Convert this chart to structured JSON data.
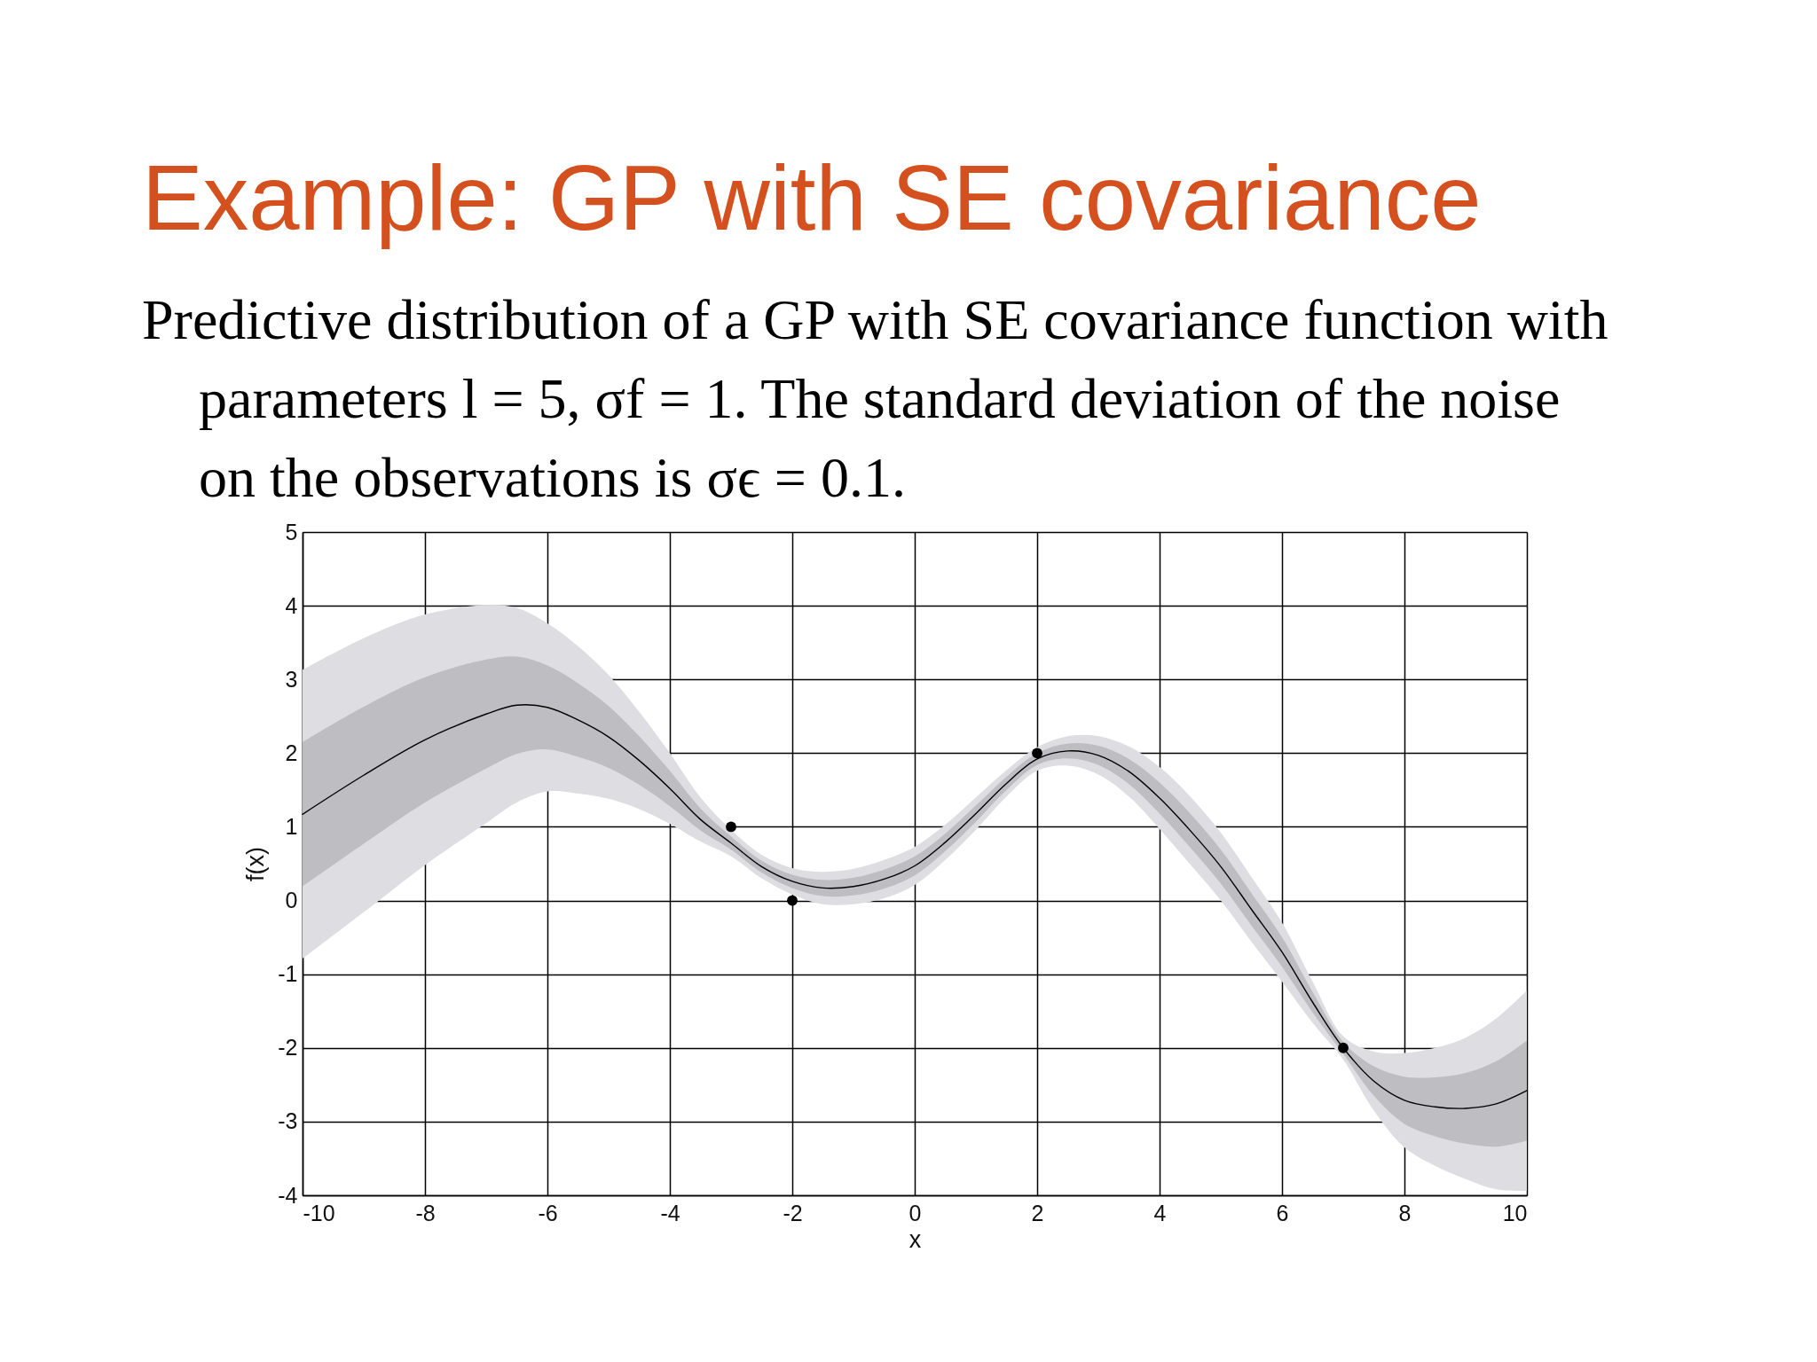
{
  "chart_data": {
    "type": "line",
    "title": "Example: GP with SE covariance",
    "subtitle": "Predictive distribution of a GP with SE covariance function with parameters l = 5, σf = 1. The standard deviation of the noise on the observations is σϵ = 0.1.",
    "xlabel": "x",
    "ylabel": "f(x)",
    "x": [
      -10,
      -9,
      -8,
      -7,
      -6.5,
      -6,
      -5.5,
      -5,
      -4.5,
      -4,
      -3.5,
      -3,
      -2.5,
      -2,
      -1.5,
      -1,
      -0.5,
      0,
      0.5,
      1,
      1.5,
      2,
      2.5,
      3,
      3.5,
      4,
      4.5,
      5,
      5.5,
      6,
      6.5,
      7,
      7.5,
      8,
      8.5,
      9,
      9.5,
      10
    ],
    "series": [
      {
        "type": "area",
        "color": "#dedde2",
        "values": [
          null,
          null,
          null,
          null,
          null,
          null,
          null,
          null,
          null,
          null,
          null,
          null,
          null,
          null,
          null,
          null,
          null,
          null,
          null,
          null,
          null,
          null,
          null,
          null,
          null,
          null,
          null,
          null,
          null,
          null,
          null,
          null,
          null,
          null,
          null,
          null,
          null,
          null
        ],
        "lower": [
          -0.79,
          -0.16,
          0.48,
          1.05,
          1.33,
          1.48,
          1.45,
          1.38,
          1.24,
          1.04,
          0.8,
          0.6,
          0.3,
          0.08,
          -0.05,
          -0.05,
          0.03,
          0.21,
          0.55,
          0.96,
          1.41,
          1.76,
          1.83,
          1.71,
          1.41,
          0.97,
          0.49,
          0.0,
          -0.56,
          -1.1,
          -1.66,
          -2.16,
          -2.85,
          -3.35,
          -3.6,
          -3.78,
          -3.92,
          -3.94
        ],
        "upper": [
          3.13,
          3.56,
          3.88,
          4.01,
          3.97,
          3.76,
          3.45,
          3.06,
          2.56,
          2.0,
          1.4,
          0.96,
          0.62,
          0.44,
          0.39,
          0.43,
          0.55,
          0.73,
          1.03,
          1.4,
          1.77,
          2.08,
          2.23,
          2.23,
          2.09,
          1.81,
          1.41,
          0.92,
          0.32,
          -0.3,
          -1.1,
          -1.84,
          -2.05,
          -2.07,
          -2.0,
          -1.86,
          -1.6,
          -1.22
        ]
      },
      {
        "type": "area",
        "color": "#bebdc2",
        "values": [
          null,
          null,
          null,
          null,
          null,
          null,
          null,
          null,
          null,
          null,
          null,
          null,
          null,
          null,
          null,
          null,
          null,
          null,
          null,
          null,
          null,
          null,
          null,
          null,
          null,
          null,
          null,
          null,
          null,
          null,
          null,
          null,
          null,
          null,
          null,
          null,
          null,
          null
        ],
        "lower": [
          0.19,
          0.77,
          1.33,
          1.79,
          1.99,
          2.05,
          1.95,
          1.8,
          1.57,
          1.28,
          0.95,
          0.69,
          0.38,
          0.17,
          0.06,
          0.07,
          0.16,
          0.34,
          0.67,
          1.07,
          1.5,
          1.84,
          1.93,
          1.84,
          1.58,
          1.18,
          0.72,
          0.23,
          -0.34,
          -0.9,
          -1.52,
          -2.08,
          -2.65,
          -3.03,
          -3.2,
          -3.3,
          -3.34,
          -3.26
        ],
        "upper": [
          2.15,
          2.63,
          3.03,
          3.27,
          3.31,
          3.19,
          2.95,
          2.64,
          2.23,
          1.76,
          1.25,
          0.87,
          0.54,
          0.35,
          0.28,
          0.31,
          0.42,
          0.6,
          0.91,
          1.29,
          1.68,
          2.0,
          2.13,
          2.1,
          1.92,
          1.6,
          1.18,
          0.69,
          0.1,
          -0.5,
          -1.24,
          -1.92,
          -2.25,
          -2.39,
          -2.4,
          -2.34,
          -2.18,
          -1.9
        ]
      },
      {
        "color": "#000000",
        "values": [
          1.17,
          1.7,
          2.18,
          2.53,
          2.65,
          2.62,
          2.45,
          2.22,
          1.9,
          1.52,
          1.1,
          0.78,
          0.46,
          0.26,
          0.17,
          0.19,
          0.29,
          0.47,
          0.79,
          1.18,
          1.59,
          1.92,
          2.03,
          1.97,
          1.75,
          1.39,
          0.95,
          0.46,
          -0.12,
          -0.7,
          -1.38,
          -2.0,
          -2.45,
          -2.71,
          -2.8,
          -2.82,
          -2.76,
          -2.58
        ]
      },
      {
        "type": "scatter",
        "color": "#000000",
        "marker": "circle",
        "x": [
          -3,
          -2,
          2,
          7
        ],
        "values": [
          1,
          0,
          2,
          -2
        ]
      }
    ],
    "xlim": [
      -10,
      10
    ],
    "ylim": [
      -4,
      5
    ],
    "xticks": [
      -10,
      -8,
      -6,
      -4,
      -2,
      0,
      2,
      4,
      6,
      8,
      10
    ],
    "yticks": [
      -4,
      -3,
      -2,
      -1,
      0,
      1,
      2,
      3,
      4,
      5
    ],
    "grid": true
  }
}
